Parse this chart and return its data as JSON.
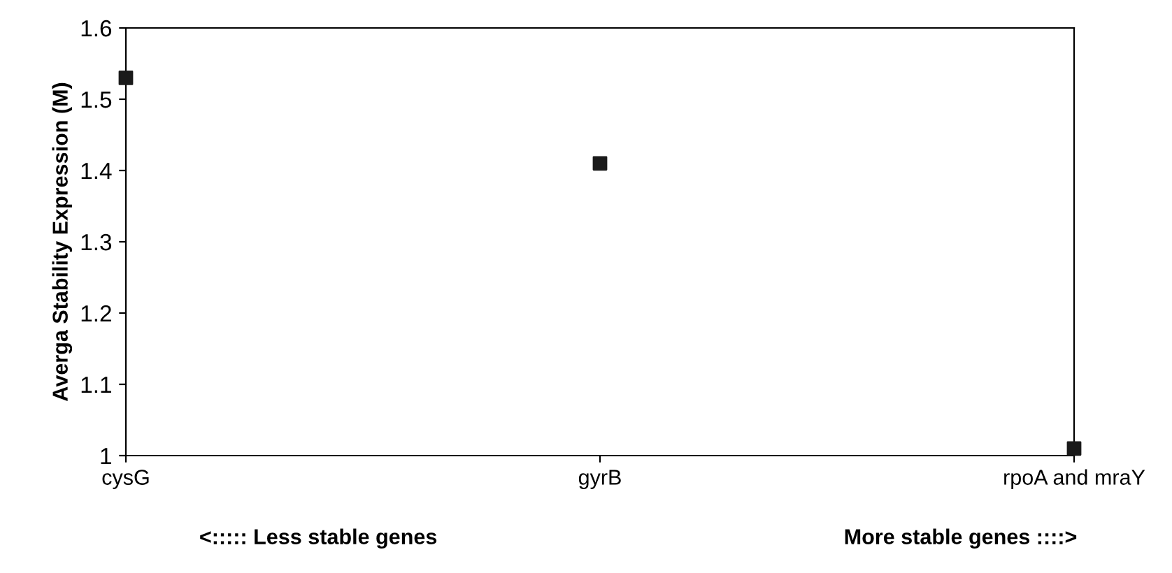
{
  "chart_data": {
    "type": "scatter",
    "ylabel": "Averga Stability Expression (M)",
    "categories": [
      "cysG",
      "gyrB",
      "rpoA and mraY"
    ],
    "series": [
      {
        "color": "#1a1a1a",
        "values": [
          1.53,
          1.41,
          1.01
        ]
      }
    ],
    "ylim": [
      1,
      1.6
    ],
    "yticks": [
      1,
      1.1,
      1.2,
      1.3,
      1.4,
      1.5,
      1.6
    ],
    "marker": "square",
    "grid": false,
    "legend": false,
    "annotations": [
      "<::::: Less stable genes",
      "More stable genes ::::>"
    ]
  }
}
